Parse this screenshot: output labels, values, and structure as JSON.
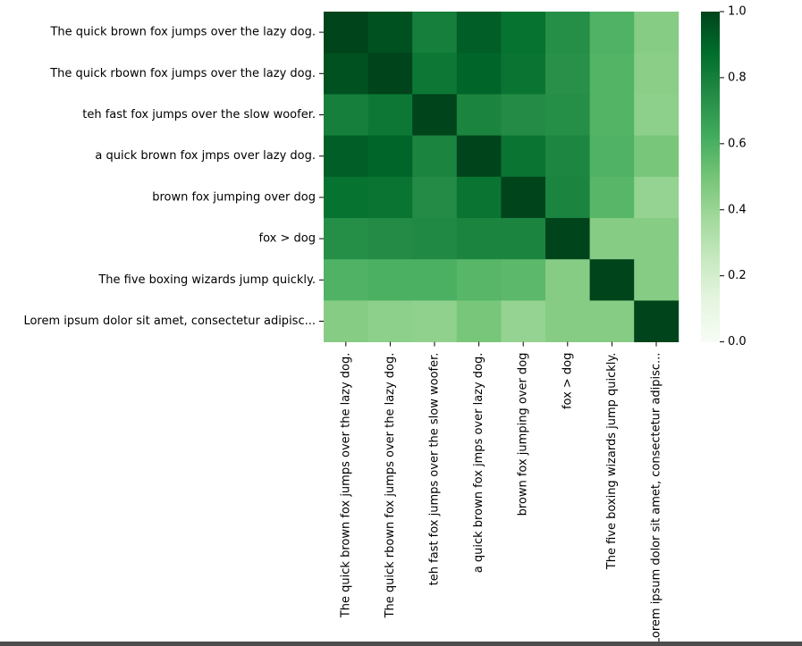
{
  "colors": {
    "colormap": "Greens",
    "low": "#f7fcf5",
    "high": "#00441b"
  },
  "chart_data": {
    "type": "heatmap",
    "title": "",
    "xlabel": "",
    "ylabel": "",
    "rows": [
      "The quick brown fox jumps over the lazy dog.",
      "The quick rbown fox jumps over the lazy dog.",
      "teh fast fox jumps over the slow woofer.",
      "a quick brown fox jmps over lazy dog.",
      "brown fox jumping over dog",
      "fox > dog",
      "The five boxing wizards jump quickly.",
      "Lorem ipsum dolor sit amet, consectetur adipisc..."
    ],
    "columns": [
      "The quick brown fox jumps over the lazy dog.",
      "The quick rbown fox jumps over the lazy dog.",
      "teh fast fox jumps over the slow woofer.",
      "a quick brown fox jmps over lazy dog.",
      "brown fox jumping over dog",
      "fox > dog",
      "The five boxing wizards jump quickly.",
      "Lorem ipsum dolor sit amet, consectetur adipisc..."
    ],
    "values": [
      [
        1.0,
        0.96,
        0.8,
        0.92,
        0.85,
        0.74,
        0.59,
        0.45
      ],
      [
        0.96,
        1.0,
        0.83,
        0.9,
        0.84,
        0.73,
        0.58,
        0.44
      ],
      [
        0.8,
        0.83,
        1.0,
        0.78,
        0.75,
        0.74,
        0.58,
        0.43
      ],
      [
        0.92,
        0.9,
        0.78,
        1.0,
        0.84,
        0.77,
        0.59,
        0.49
      ],
      [
        0.85,
        0.84,
        0.75,
        0.84,
        1.0,
        0.78,
        0.57,
        0.41
      ],
      [
        0.74,
        0.75,
        0.76,
        0.78,
        0.78,
        1.0,
        0.45,
        0.45
      ],
      [
        0.59,
        0.6,
        0.6,
        0.57,
        0.56,
        0.45,
        1.0,
        0.45
      ],
      [
        0.45,
        0.43,
        0.42,
        0.49,
        0.41,
        0.45,
        0.45,
        1.0
      ]
    ],
    "colorbar": {
      "range": [
        0,
        1
      ],
      "ticks": [
        "0.0",
        "0.2",
        "0.4",
        "0.6",
        "0.8",
        "1.0"
      ]
    }
  }
}
